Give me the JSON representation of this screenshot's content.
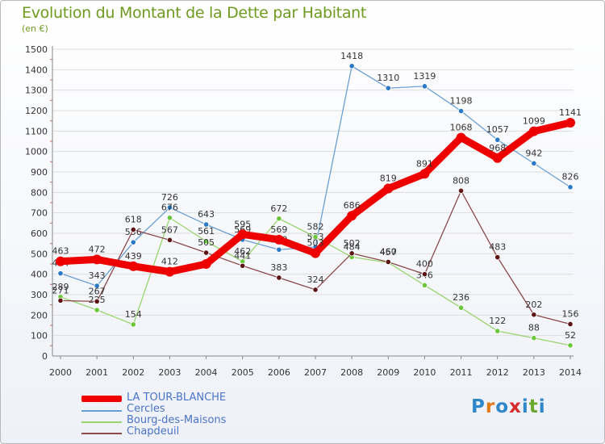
{
  "title": "Evolution du Montant de la Dette par Habitant",
  "unit": "(en €)",
  "logo": {
    "text": "Proxiti",
    "colors": [
      "#2f86c8",
      "#e07a19",
      "#2f86c8",
      "#d82b2b",
      "#2f86c8",
      "#69a82c",
      "#2f86c8"
    ]
  },
  "chart_data": {
    "type": "line",
    "x": [
      "2000",
      "2001",
      "2002",
      "2003",
      "2004",
      "2005",
      "2006",
      "2007",
      "2008",
      "2009",
      "2010",
      "2011",
      "2012",
      "2013",
      "2014"
    ],
    "ylim": [
      0,
      1500
    ],
    "yticks": [
      "0",
      "100",
      "200",
      "300",
      "400",
      "500",
      "600",
      "700",
      "800",
      "900",
      "1000",
      "1100",
      "1200",
      "1300",
      "1400",
      "1500"
    ],
    "grid": "horizontal",
    "legend_position": "bottom-left",
    "series": [
      {
        "name": "Cercles",
        "color": "#6a9fd4",
        "marker": "#2a78c6",
        "values": [
          404,
          343,
          556,
          726,
          643,
          569,
          520,
          533,
          1418,
          1310,
          1319,
          1198,
          1057,
          942,
          826
        ],
        "labels": [
          "404",
          "343",
          "556",
          "726",
          "643",
          "569",
          "520",
          "533",
          "1418",
          "1310",
          "1319",
          "1198",
          "1057",
          "942",
          "826"
        ]
      },
      {
        "name": "Bourg-des-Maisons",
        "color": "#9bd46e",
        "marker": "#6cc63c",
        "values": [
          289,
          225,
          154,
          676,
          561,
          462,
          672,
          582,
          484,
          457,
          346,
          236,
          122,
          88,
          52
        ],
        "labels": [
          "289",
          "225",
          "154",
          "676",
          "561",
          "462",
          "672",
          "582",
          "484",
          "457",
          "346",
          "236",
          "122",
          "88",
          "52"
        ]
      },
      {
        "name": "Chapdeuil",
        "color": "#8a4a4a",
        "marker": "#5c1414",
        "values": [
          271,
          267,
          618,
          567,
          505,
          441,
          383,
          324,
          502,
          460,
          400,
          808,
          483,
          202,
          156
        ],
        "labels": [
          "271",
          "267",
          "618",
          "567",
          "505",
          "441",
          "383",
          "324",
          "502",
          "460",
          "400",
          "808",
          "483",
          "202",
          "156"
        ]
      },
      {
        "name": "LA TOUR-BLANCHE",
        "color": "#ee0000",
        "marker": "#ee0000",
        "emphasis": true,
        "values": [
          463,
          472,
          439,
          412,
          450,
          595,
          569,
          503,
          686,
          819,
          891,
          1068,
          968,
          1099,
          1141
        ],
        "labels": [
          "463",
          "472",
          "439",
          "412",
          "",
          "595",
          "569",
          "503",
          "686",
          "819",
          "891",
          "1068",
          "968",
          "1099",
          "1141"
        ]
      }
    ]
  },
  "legend": [
    {
      "label": "LA TOUR-BLANCHE",
      "color": "#ee0000",
      "emphasis": true
    },
    {
      "label": "Cercles",
      "color": "#6a9fd4"
    },
    {
      "label": "Bourg-des-Maisons",
      "color": "#9bd46e"
    },
    {
      "label": "Chapdeuil",
      "color": "#8a4a4a"
    }
  ]
}
